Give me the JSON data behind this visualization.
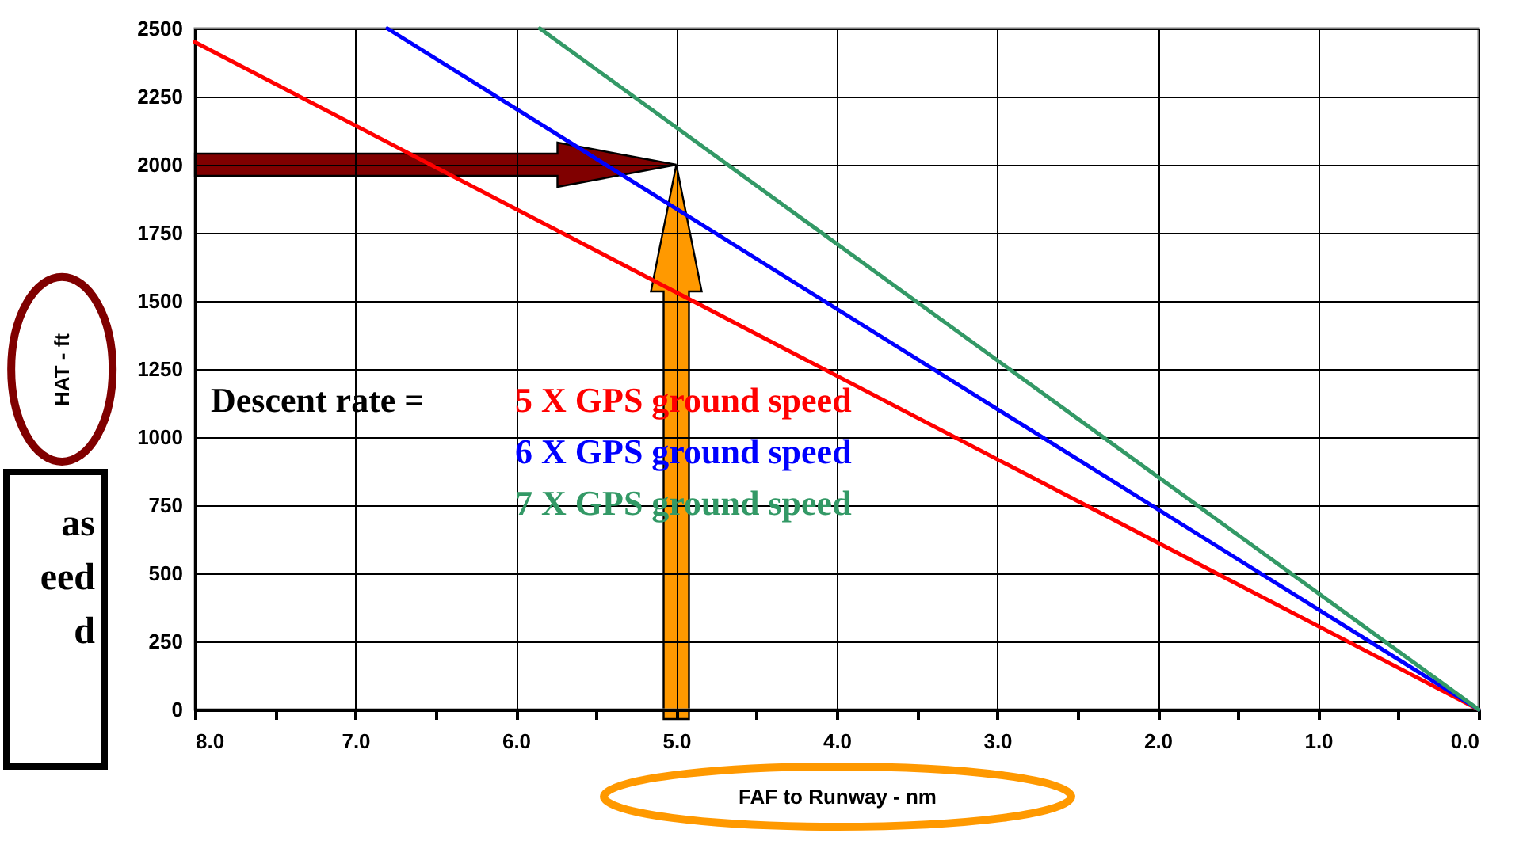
{
  "chart_data": {
    "type": "line",
    "xlabel": "FAF to Runway - nm",
    "ylabel": "HAT - ft",
    "series": [
      {
        "name": "5 X GPS ground speed",
        "color": "#ff0000",
        "x": [
          8,
          0
        ],
        "values": [
          2450,
          0
        ]
      },
      {
        "name": "6 X GPS ground speed",
        "color": "#0000ff",
        "x": [
          6.8,
          0
        ],
        "values": [
          2500,
          0
        ]
      },
      {
        "name": "7 X GPS ground speed",
        "color": "#339966",
        "x": [
          5.85,
          0
        ],
        "values": [
          2500,
          0
        ]
      }
    ],
    "xlim": [
      8,
      0
    ],
    "xticks": [
      {
        "value": 8,
        "label": "8.0"
      },
      {
        "value": 7.5,
        "label": null
      },
      {
        "value": 7,
        "label": "7.0"
      },
      {
        "value": 6.5,
        "label": null
      },
      {
        "value": 6,
        "label": "6.0"
      },
      {
        "value": 5.5,
        "label": null
      },
      {
        "value": 5,
        "label": "5.0"
      },
      {
        "value": 4.5,
        "label": null
      },
      {
        "value": 4,
        "label": "4.0"
      },
      {
        "value": 3.5,
        "label": null
      },
      {
        "value": 3,
        "label": "3.0"
      },
      {
        "value": 2.5,
        "label": null
      },
      {
        "value": 2,
        "label": "2.0"
      },
      {
        "value": 1.5,
        "label": null
      },
      {
        "value": 1,
        "label": "1.0"
      },
      {
        "value": 0.5,
        "label": null
      },
      {
        "value": 0,
        "label": "0.0"
      }
    ],
    "ylim": [
      0,
      2500
    ],
    "yticks": [
      0,
      250,
      500,
      750,
      1000,
      1250,
      1500,
      1750,
      2000,
      2250,
      2500
    ],
    "grid": true,
    "line_style": "solid",
    "marker": "none",
    "annotations": [
      "Descent rate =",
      "as\need\nd"
    ]
  }
}
